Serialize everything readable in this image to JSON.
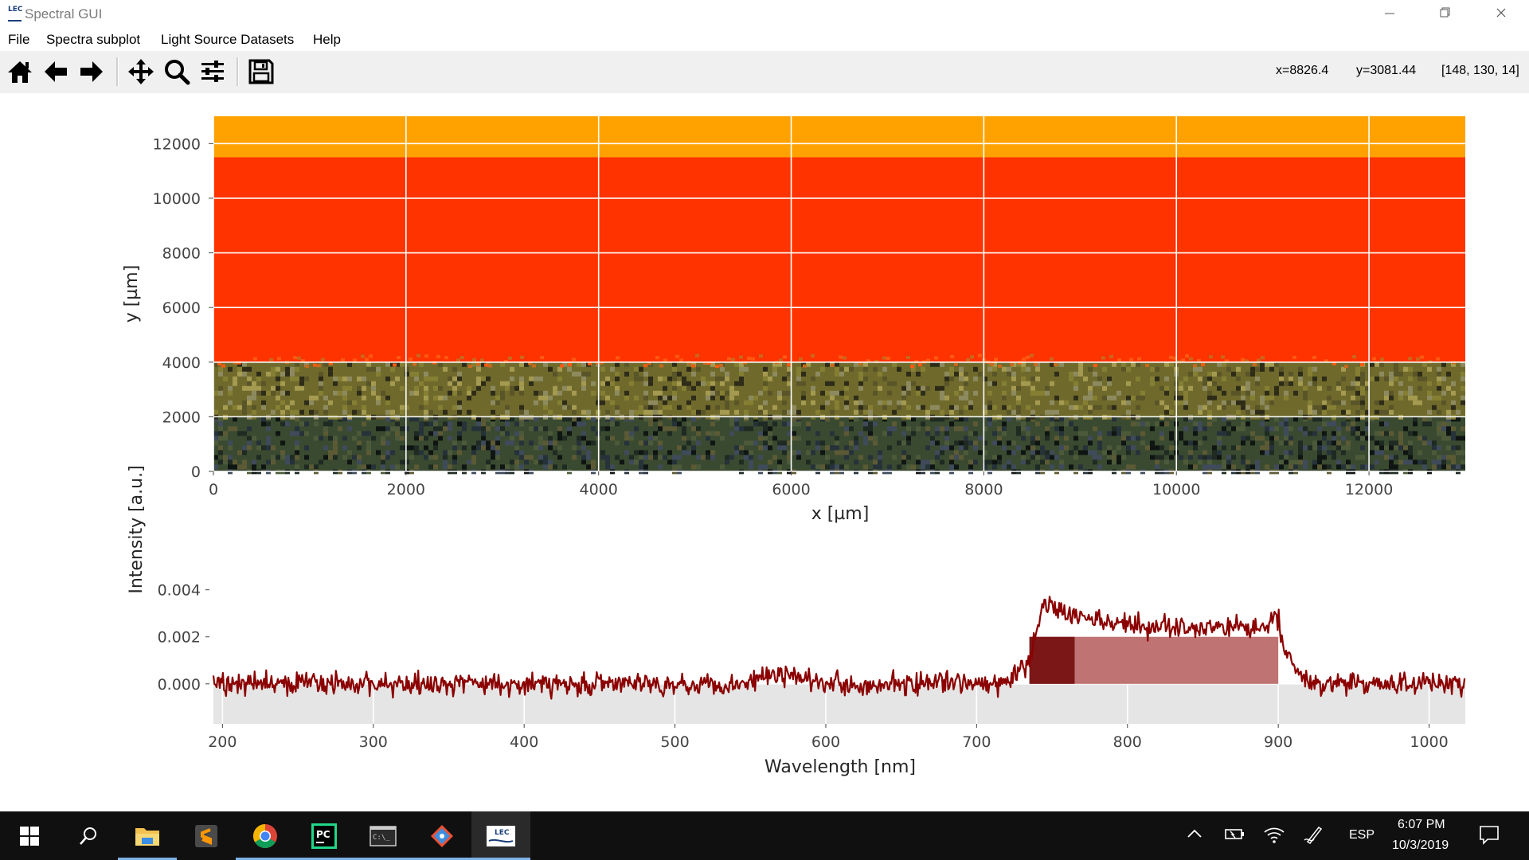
{
  "window": {
    "title": "Spectral GUI",
    "icon_text": "LEC"
  },
  "menu": {
    "items": [
      "File",
      "Spectra subplot",
      "Light Source Datasets",
      "Help"
    ]
  },
  "toolbar": {
    "buttons": [
      "home-icon",
      "back-arrow-icon",
      "forward-arrow-icon",
      "pan-icon",
      "zoom-icon",
      "configure-subplots-icon",
      "save-icon"
    ],
    "coords": {
      "x": "x=8826.4",
      "y": "y=3081.44",
      "pixel": "[148, 130, 14]"
    }
  },
  "chart_data": [
    {
      "type": "heatmap",
      "title": "",
      "xlabel": "x [µm]",
      "ylabel": "y [µm]",
      "xlim": [
        0,
        13000
      ],
      "ylim": [
        0,
        13000
      ],
      "x_ticks": [
        0,
        2000,
        4000,
        6000,
        8000,
        10000,
        12000
      ],
      "y_ticks": [
        0,
        2000,
        4000,
        6000,
        8000,
        10000,
        12000
      ],
      "grid": true,
      "bands": [
        {
          "y_from": 0,
          "y_to": 2000,
          "color": "#3a4a30",
          "texture": "noisy"
        },
        {
          "y_from": 2000,
          "y_to": 4000,
          "color": "#6f6a2c",
          "texture": "noisy"
        },
        {
          "y_from": 4000,
          "y_to": 11500,
          "color": "#ff3300"
        },
        {
          "y_from": 11500,
          "y_to": 13000,
          "color": "#ffa200"
        }
      ]
    },
    {
      "type": "line",
      "title": "",
      "xlabel": "Wavelength [nm]",
      "ylabel": "Intensity [a.u.]",
      "xlim": [
        194,
        1024
      ],
      "ylim": [
        -0.0017,
        0.0047
      ],
      "x_ticks": [
        200,
        300,
        400,
        500,
        600,
        700,
        800,
        900,
        1000
      ],
      "y_ticks": [
        0.0,
        0.002,
        0.004
      ],
      "y_tick_labels": [
        "0.000",
        "0.002",
        "0.004"
      ],
      "grid": true,
      "series": [
        {
          "color": "#8b0000",
          "noise_amplitude": 0.0004,
          "x": [
            194,
            540,
            560,
            570,
            590,
            610,
            720,
            735,
            745,
            760,
            800,
            880,
            900,
            905,
            920,
            1024
          ],
          "y": [
            0.0,
            0.0,
            0.0003,
            0.0005,
            0.0002,
            0.0,
            0.0,
            0.001,
            0.0035,
            0.0029,
            0.0025,
            0.0024,
            0.0028,
            0.0012,
            0.0,
            0.0
          ]
        }
      ],
      "highlight": {
        "x_from": 735,
        "x_to": 900,
        "y_to": 0.002
      }
    }
  ],
  "taskbar": {
    "apps": [
      "windows-start-icon",
      "search-icon",
      "file-explorer-icon",
      "sublime-text-icon",
      "chrome-icon",
      "pycharm-icon",
      "cmd-icon",
      "git-icon",
      "spectral-gui-icon"
    ],
    "pycharm_label": "PC",
    "lec_label": "LEC",
    "language": "ESP",
    "time": "6:07 PM",
    "date": "10/3/2019"
  }
}
